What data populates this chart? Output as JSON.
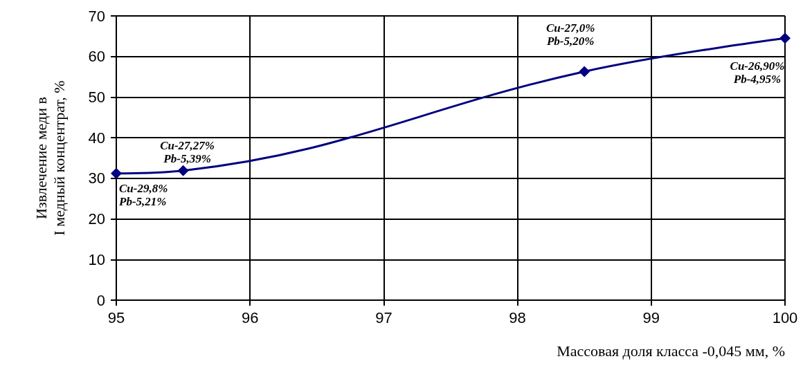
{
  "chart_data": {
    "type": "line",
    "xlabel": "Массовая доля класса -0,045 мм, %",
    "ylabel": "Извлечение меди в\nI медный концентрат, %",
    "x": [
      95,
      95.5,
      98.5,
      100
    ],
    "series": [
      {
        "color": "#000080",
        "values": [
          31.2,
          31.9,
          56.3,
          64.5
        ]
      }
    ],
    "xlim": [
      95,
      100
    ],
    "xticks": [
      95,
      96,
      97,
      98,
      99,
      100
    ],
    "ylim": [
      0,
      70
    ],
    "yticks": [
      0,
      10,
      20,
      30,
      40,
      50,
      60,
      70
    ],
    "grid": true,
    "marker": "diamond",
    "line_style": "solid",
    "annotations": [
      {
        "text": "Cu-29,8%\nPb-5,21%",
        "x": 95,
        "y": 31.2
      },
      {
        "text": "Cu-27,27%\nPb-5,39%",
        "x": 95.5,
        "y": 31.9
      },
      {
        "text": "Cu-27,0%\nPb-5,20%",
        "x": 98.5,
        "y": 56.3
      },
      {
        "text": "Cu-26,90%\nPb-4,95%",
        "x": 100,
        "y": 64.5
      }
    ]
  }
}
